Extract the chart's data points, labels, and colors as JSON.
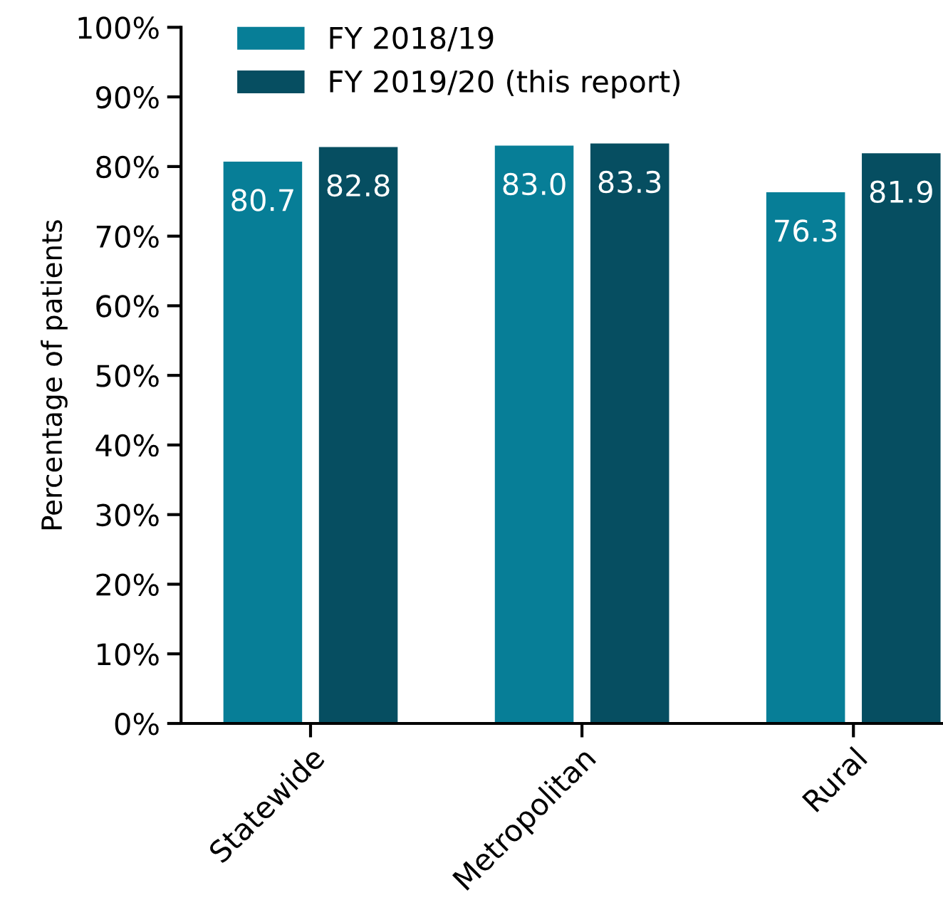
{
  "chart_data": {
    "type": "bar",
    "ylabel": "Percentage of patients",
    "categories": [
      "Statewide",
      "Metropolitan",
      "Rural"
    ],
    "series": [
      {
        "name": "FY 2018/19",
        "color": "#077e97",
        "values": [
          80.7,
          83.0,
          76.3
        ],
        "value_labels": [
          "80.7",
          "83.0",
          "76.3"
        ]
      },
      {
        "name": "FY 2019/20 (this report)",
        "color": "#064e61",
        "values": [
          82.8,
          83.3,
          81.9
        ],
        "value_labels": [
          "82.8",
          "83.3",
          "81.9"
        ]
      }
    ],
    "ylim": [
      0,
      100
    ],
    "yticks": [
      {
        "value": 0,
        "label": "0%"
      },
      {
        "value": 10,
        "label": "10%"
      },
      {
        "value": 20,
        "label": "20%"
      },
      {
        "value": 30,
        "label": "30%"
      },
      {
        "value": 40,
        "label": "40%"
      },
      {
        "value": 50,
        "label": "50%"
      },
      {
        "value": 60,
        "label": "60%"
      },
      {
        "value": 70,
        "label": "70%"
      },
      {
        "value": 80,
        "label": "80%"
      },
      {
        "value": 90,
        "label": "90%"
      },
      {
        "value": 100,
        "label": "100%"
      }
    ],
    "grid": false,
    "legend": "top left"
  }
}
